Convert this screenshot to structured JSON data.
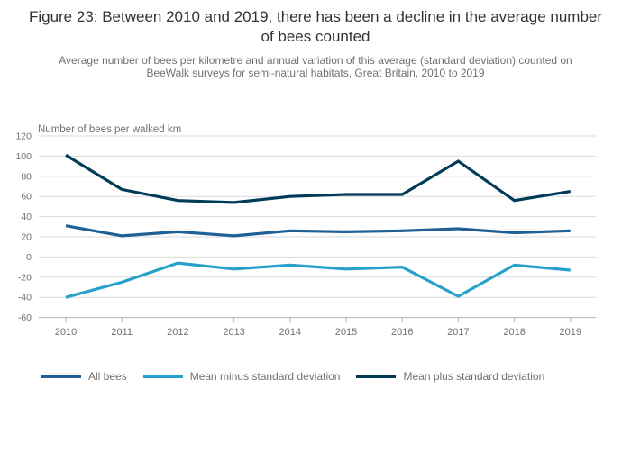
{
  "header": {
    "title": "Figure 23: Between 2010 and 2019, there has been a decline in the average number of bees counted",
    "subtitle": "Average number of bees per kilometre and annual variation of this average (standard deviation) counted on BeeWalk surveys for semi-natural habitats, Great Britain, 2010 to 2019"
  },
  "chart_data": {
    "type": "line",
    "title": "Figure 23: Between 2010 and 2019, there has been a decline in the average number of bees counted",
    "ylabel": "Number of bees per walked km",
    "xlabel": "",
    "categories": [
      "2010",
      "2011",
      "2012",
      "2013",
      "2014",
      "2015",
      "2016",
      "2017",
      "2018",
      "2019"
    ],
    "series": [
      {
        "name": "All bees",
        "color": "#206095",
        "values": [
          31,
          21,
          25,
          21,
          26,
          25,
          26,
          28,
          24,
          26
        ]
      },
      {
        "name": "Mean minus standard deviation",
        "color": "#27A0CC",
        "values": [
          -40,
          -25,
          -6,
          -12,
          -8,
          -12,
          -10,
          -39,
          -8,
          -13
        ]
      },
      {
        "name": "Mean plus standard deviation",
        "color": "#003C57",
        "values": [
          101,
          67,
          56,
          54,
          60,
          62,
          62,
          95,
          56,
          65
        ]
      }
    ],
    "ylim": [
      -60,
      120
    ],
    "ytick_step": 20,
    "yticks": [
      120,
      100,
      80,
      60,
      40,
      20,
      0,
      -20,
      -40,
      -60
    ],
    "grid": "horizontal",
    "legend_position": "bottom"
  },
  "colors": {
    "title_text": "#333333",
    "muted_text": "#707071",
    "grid": "#d9d9d9",
    "axis": "#b3b3b3",
    "background": "#ffffff"
  }
}
